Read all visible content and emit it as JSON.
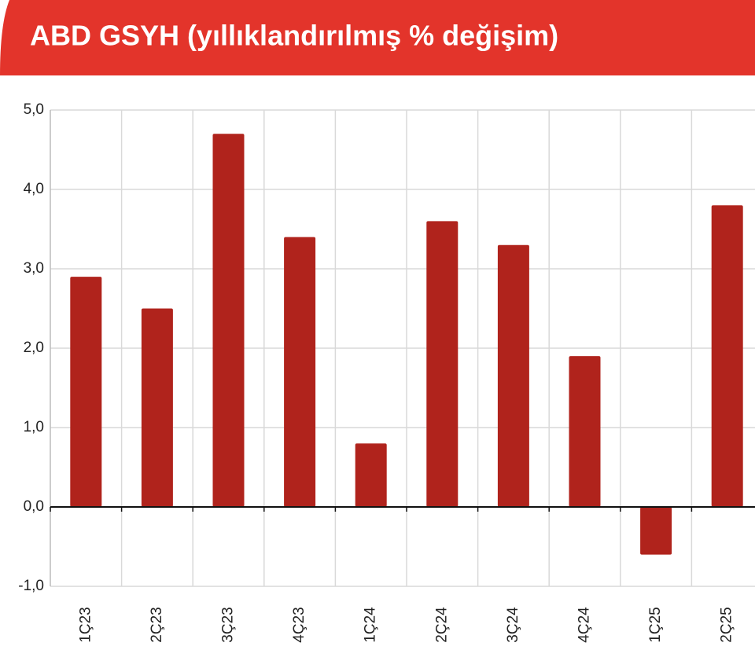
{
  "chart_data": {
    "type": "bar",
    "title": "ABD GSYH (yıllıklandırılmış % değişim)",
    "categories": [
      "1Ç23",
      "2Ç23",
      "3Ç23",
      "4Ç23",
      "1Ç24",
      "2Ç24",
      "3Ç24",
      "4Ç24",
      "1Ç25",
      "2Ç25"
    ],
    "values": [
      2.9,
      2.5,
      4.7,
      3.4,
      0.8,
      3.6,
      3.3,
      1.9,
      -0.6,
      3.8
    ],
    "color": "#b0231c",
    "ylim": [
      -1,
      5
    ],
    "yticks": [
      {
        "value": -1,
        "label": "-1,0"
      },
      {
        "value": 0,
        "label": "0,0"
      },
      {
        "value": 1,
        "label": "1,0"
      },
      {
        "value": 2,
        "label": "2,0"
      },
      {
        "value": 3,
        "label": "3,0"
      },
      {
        "value": 4,
        "label": "4,0"
      },
      {
        "value": 5,
        "label": "5,0"
      }
    ],
    "grid": true
  }
}
